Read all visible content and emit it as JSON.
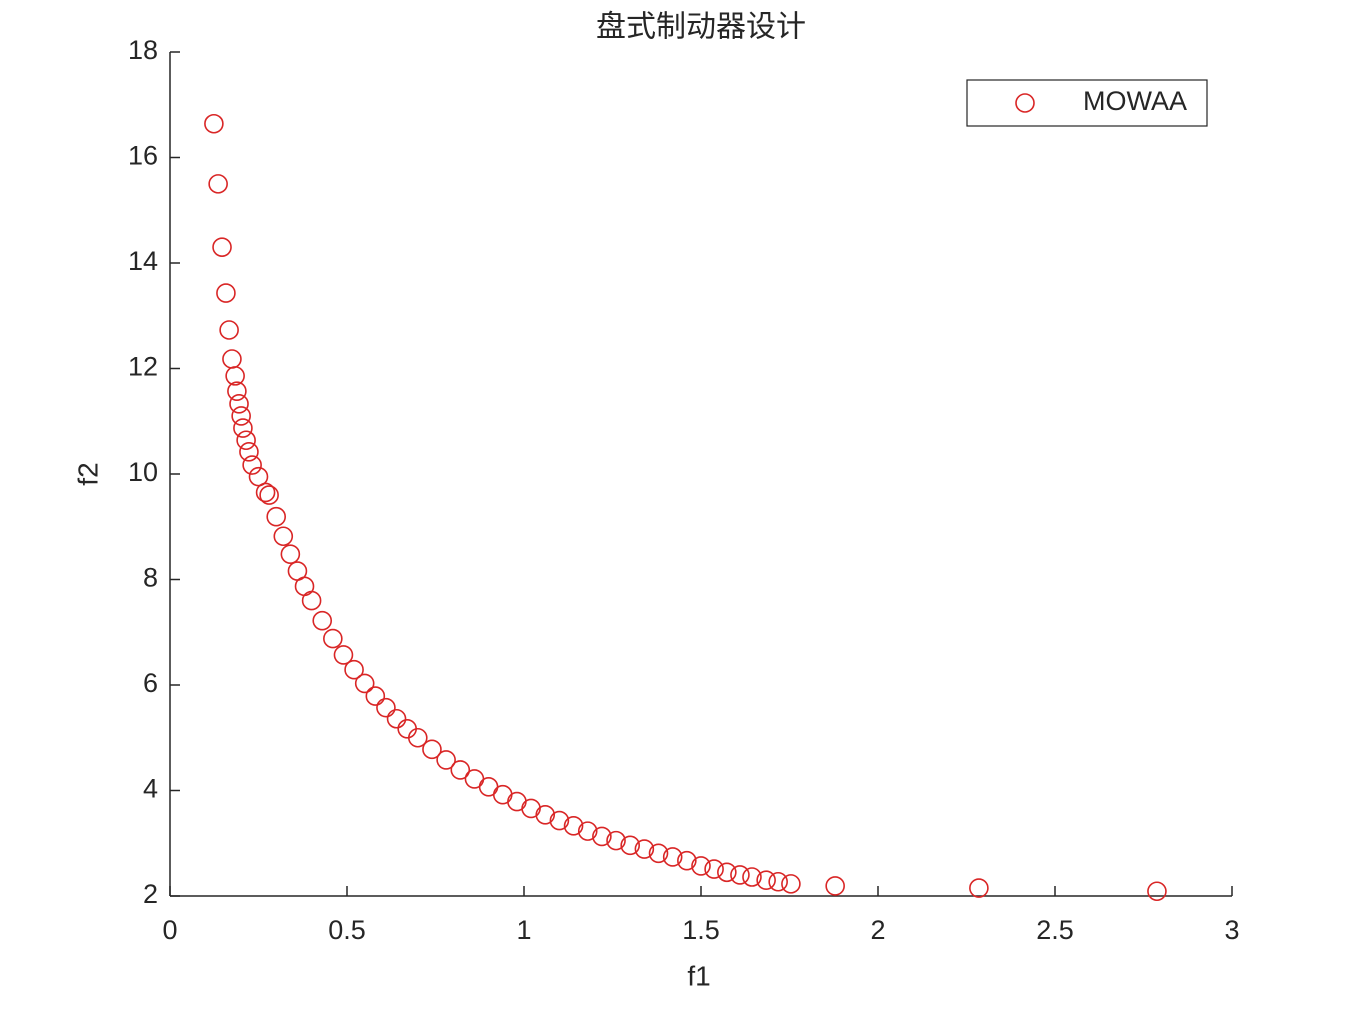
{
  "chart_data": {
    "type": "scatter",
    "title": "盘式制动器设计",
    "x_label": "f1",
    "y_label": "f2",
    "xlim": [
      0,
      3
    ],
    "ylim": [
      2,
      18
    ],
    "xticks": [
      0,
      0.5,
      1,
      1.5,
      2,
      2.5,
      3
    ],
    "yticks": [
      2,
      4,
      6,
      8,
      10,
      12,
      14,
      16,
      18
    ],
    "legend": "upper right",
    "grid": false,
    "series": [
      {
        "name": "MOWAA",
        "color": "#d92626",
        "x": [
          0.124,
          0.136,
          0.147,
          0.158,
          0.167,
          0.175,
          0.184,
          0.189,
          0.195,
          0.201,
          0.206,
          0.215,
          0.223,
          0.232,
          0.25,
          0.27,
          0.28,
          0.3,
          0.32,
          0.34,
          0.36,
          0.38,
          0.4,
          0.43,
          0.46,
          0.49,
          0.52,
          0.55,
          0.58,
          0.61,
          0.64,
          0.67,
          0.7,
          0.74,
          0.78,
          0.82,
          0.86,
          0.9,
          0.94,
          0.98,
          1.02,
          1.06,
          1.1,
          1.14,
          1.18,
          1.22,
          1.26,
          1.3,
          1.34,
          1.38,
          1.42,
          1.46,
          1.5,
          1.537,
          1.573,
          1.61,
          1.644,
          1.684,
          1.718,
          1.754,
          1.879,
          2.285,
          2.788
        ],
        "values": [
          16.64,
          15.5,
          14.3,
          13.43,
          12.73,
          12.18,
          11.86,
          11.57,
          11.33,
          11.1,
          10.87,
          10.64,
          10.42,
          10.17,
          9.95,
          9.65,
          9.6,
          9.19,
          8.82,
          8.48,
          8.16,
          7.87,
          7.6,
          7.22,
          6.88,
          6.57,
          6.29,
          6.03,
          5.79,
          5.57,
          5.36,
          5.17,
          5.0,
          4.78,
          4.58,
          4.39,
          4.22,
          4.07,
          3.92,
          3.79,
          3.66,
          3.54,
          3.43,
          3.33,
          3.23,
          3.13,
          3.05,
          2.96,
          2.89,
          2.81,
          2.74,
          2.67,
          2.57,
          2.51,
          2.45,
          2.4,
          2.36,
          2.3,
          2.27,
          2.23,
          2.19,
          2.15,
          2.09
        ]
      }
    ]
  }
}
